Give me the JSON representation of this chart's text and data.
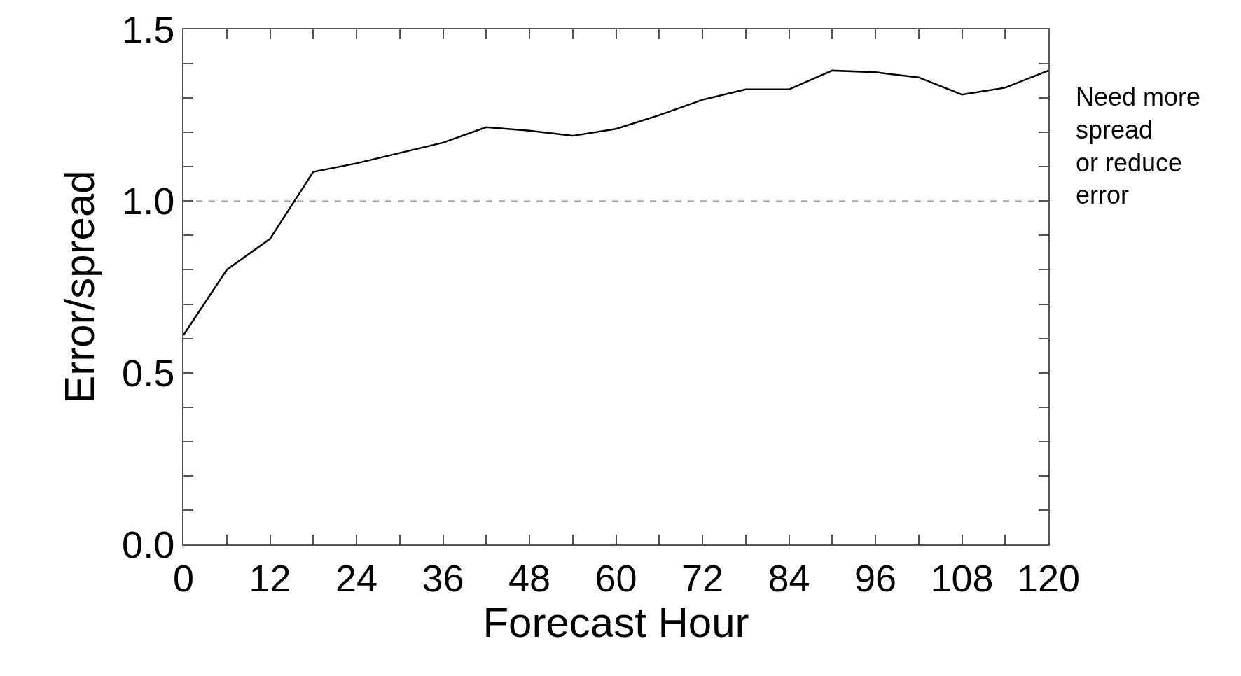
{
  "chart_data": {
    "type": "line",
    "xlabel": "Forecast Hour",
    "ylabel": "Error/spread",
    "x": [
      0,
      6,
      12,
      18,
      24,
      30,
      36,
      42,
      48,
      54,
      60,
      66,
      72,
      78,
      84,
      90,
      96,
      102,
      108,
      114,
      120
    ],
    "series": [
      {
        "color": "#000000",
        "values": [
          0.61,
          0.8,
          0.89,
          1.085,
          1.11,
          1.14,
          1.17,
          1.215,
          1.205,
          1.19,
          1.21,
          1.25,
          1.295,
          1.325,
          1.325,
          1.38,
          1.375,
          1.36,
          1.31,
          1.33,
          1.38
        ]
      }
    ],
    "xlim": [
      0,
      120
    ],
    "ylim": [
      0,
      1.5
    ],
    "xticks": [
      0,
      {
        "value": 6,
        "label": null
      },
      12,
      {
        "value": 18,
        "label": null
      },
      24,
      {
        "value": 30,
        "label": null
      },
      36,
      {
        "value": 42,
        "label": null
      },
      48,
      {
        "value": 54,
        "label": null
      },
      60,
      {
        "value": 66,
        "label": null
      },
      72,
      {
        "value": 78,
        "label": null
      },
      84,
      {
        "value": 90,
        "label": null
      },
      96,
      {
        "value": 102,
        "label": null
      },
      108,
      {
        "value": 114,
        "label": null
      },
      120
    ],
    "yticks": [
      {
        "value": 0,
        "label": "0.0"
      },
      {
        "value": 0.1,
        "label": null
      },
      {
        "value": 0.2,
        "label": null
      },
      {
        "value": 0.3,
        "label": null
      },
      {
        "value": 0.4,
        "label": null
      },
      0.5,
      {
        "value": 0.6,
        "label": null
      },
      {
        "value": 0.7,
        "label": null
      },
      {
        "value": 0.8,
        "label": null
      },
      {
        "value": 0.9,
        "label": null
      },
      {
        "value": 1,
        "label": "1.0"
      },
      {
        "value": 1.1,
        "label": null
      },
      {
        "value": 1.2,
        "label": null
      },
      {
        "value": 1.3,
        "label": null
      },
      {
        "value": 1.4,
        "label": null
      },
      1.5
    ],
    "ref_lines": [
      {
        "axis": "y",
        "value": 1.0,
        "color": "#aaaaaa",
        "line_style": "dashed"
      }
    ],
    "annotations": [
      "Need more\nspread\nor reduce\nerror"
    ],
    "marker": "none",
    "line_style": "solid"
  }
}
